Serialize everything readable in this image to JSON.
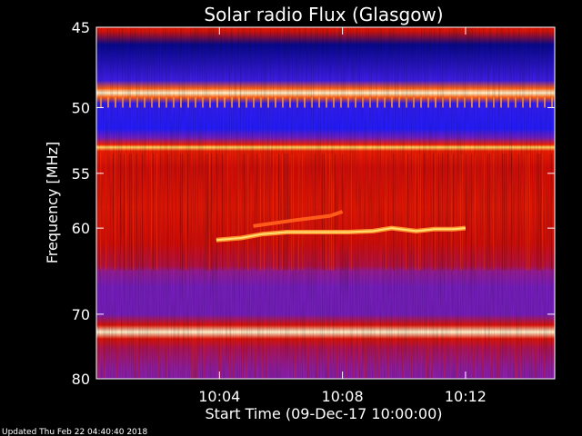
{
  "chart_data": {
    "type": "heatmap",
    "title": "Solar radio Flux (Glasgow)",
    "xlabel": "Start Time (09-Dec-17 10:00:00)",
    "ylabel": "Frequency [MHz]",
    "xlim_minutes": [
      0,
      14.9
    ],
    "ylim_mhz": [
      45,
      80
    ],
    "x_ticks": [
      {
        "label": "10:04",
        "minutes": 4
      },
      {
        "label": "10:08",
        "minutes": 8
      },
      {
        "label": "10:12",
        "minutes": 12
      }
    ],
    "y_ticks": [
      45,
      50,
      55,
      60,
      70,
      80
    ],
    "y_scale": "reciprocal",
    "color_scale": [
      "#00005a",
      "#1c1cff",
      "#8a1fa8",
      "#c80a0a",
      "#ff2a00",
      "#ffd23a",
      "#fff6d0"
    ],
    "frequency_profile": [
      {
        "mhz": 45.2,
        "level": 0.55
      },
      {
        "mhz": 46.0,
        "level": 0.05
      },
      {
        "mhz": 48.2,
        "level": 0.22
      },
      {
        "mhz": 48.7,
        "level": 0.72
      },
      {
        "mhz": 49.0,
        "level": 1.0
      },
      {
        "mhz": 49.3,
        "level": 0.72
      },
      {
        "mhz": 49.7,
        "level": 0.2
      },
      {
        "mhz": 51.5,
        "level": 0.18
      },
      {
        "mhz": 52.2,
        "level": 0.3
      },
      {
        "mhz": 52.7,
        "level": 0.62
      },
      {
        "mhz": 52.9,
        "level": 0.88
      },
      {
        "mhz": 53.2,
        "level": 0.6
      },
      {
        "mhz": 54.5,
        "level": 0.52
      },
      {
        "mhz": 58.0,
        "level": 0.56
      },
      {
        "mhz": 61.5,
        "level": 0.52
      },
      {
        "mhz": 64.0,
        "level": 0.44
      },
      {
        "mhz": 64.6,
        "level": 0.36
      },
      {
        "mhz": 66.5,
        "level": 0.3
      },
      {
        "mhz": 70.0,
        "level": 0.3
      },
      {
        "mhz": 71.5,
        "level": 0.55
      },
      {
        "mhz": 72.5,
        "level": 1.0
      },
      {
        "mhz": 73.5,
        "level": 0.55
      },
      {
        "mhz": 75.0,
        "level": 0.42
      },
      {
        "mhz": 78.0,
        "level": 0.35
      },
      {
        "mhz": 80.0,
        "level": 0.33
      }
    ],
    "burst_trace": [
      {
        "minutes": 3.9,
        "mhz": 61.2
      },
      {
        "minutes": 4.7,
        "mhz": 61.0
      },
      {
        "minutes": 5.4,
        "mhz": 60.6
      },
      {
        "minutes": 6.2,
        "mhz": 60.4
      },
      {
        "minutes": 7.2,
        "mhz": 60.4
      },
      {
        "minutes": 8.2,
        "mhz": 60.4
      },
      {
        "minutes": 9.0,
        "mhz": 60.3
      },
      {
        "minutes": 9.6,
        "mhz": 60.0
      },
      {
        "minutes": 10.4,
        "mhz": 60.3
      },
      {
        "minutes": 11.0,
        "mhz": 60.1
      },
      {
        "minutes": 11.6,
        "mhz": 60.1
      },
      {
        "minutes": 12.0,
        "mhz": 60.0
      }
    ],
    "burst_trace_upper": [
      {
        "minutes": 5.1,
        "mhz": 59.8
      },
      {
        "minutes": 6.5,
        "mhz": 59.2
      },
      {
        "minutes": 7.6,
        "mhz": 58.8
      },
      {
        "minutes": 8.0,
        "mhz": 58.4
      }
    ]
  },
  "footer": {
    "updated_text": "Updated Thu Feb 22 04:40:40 2018"
  }
}
